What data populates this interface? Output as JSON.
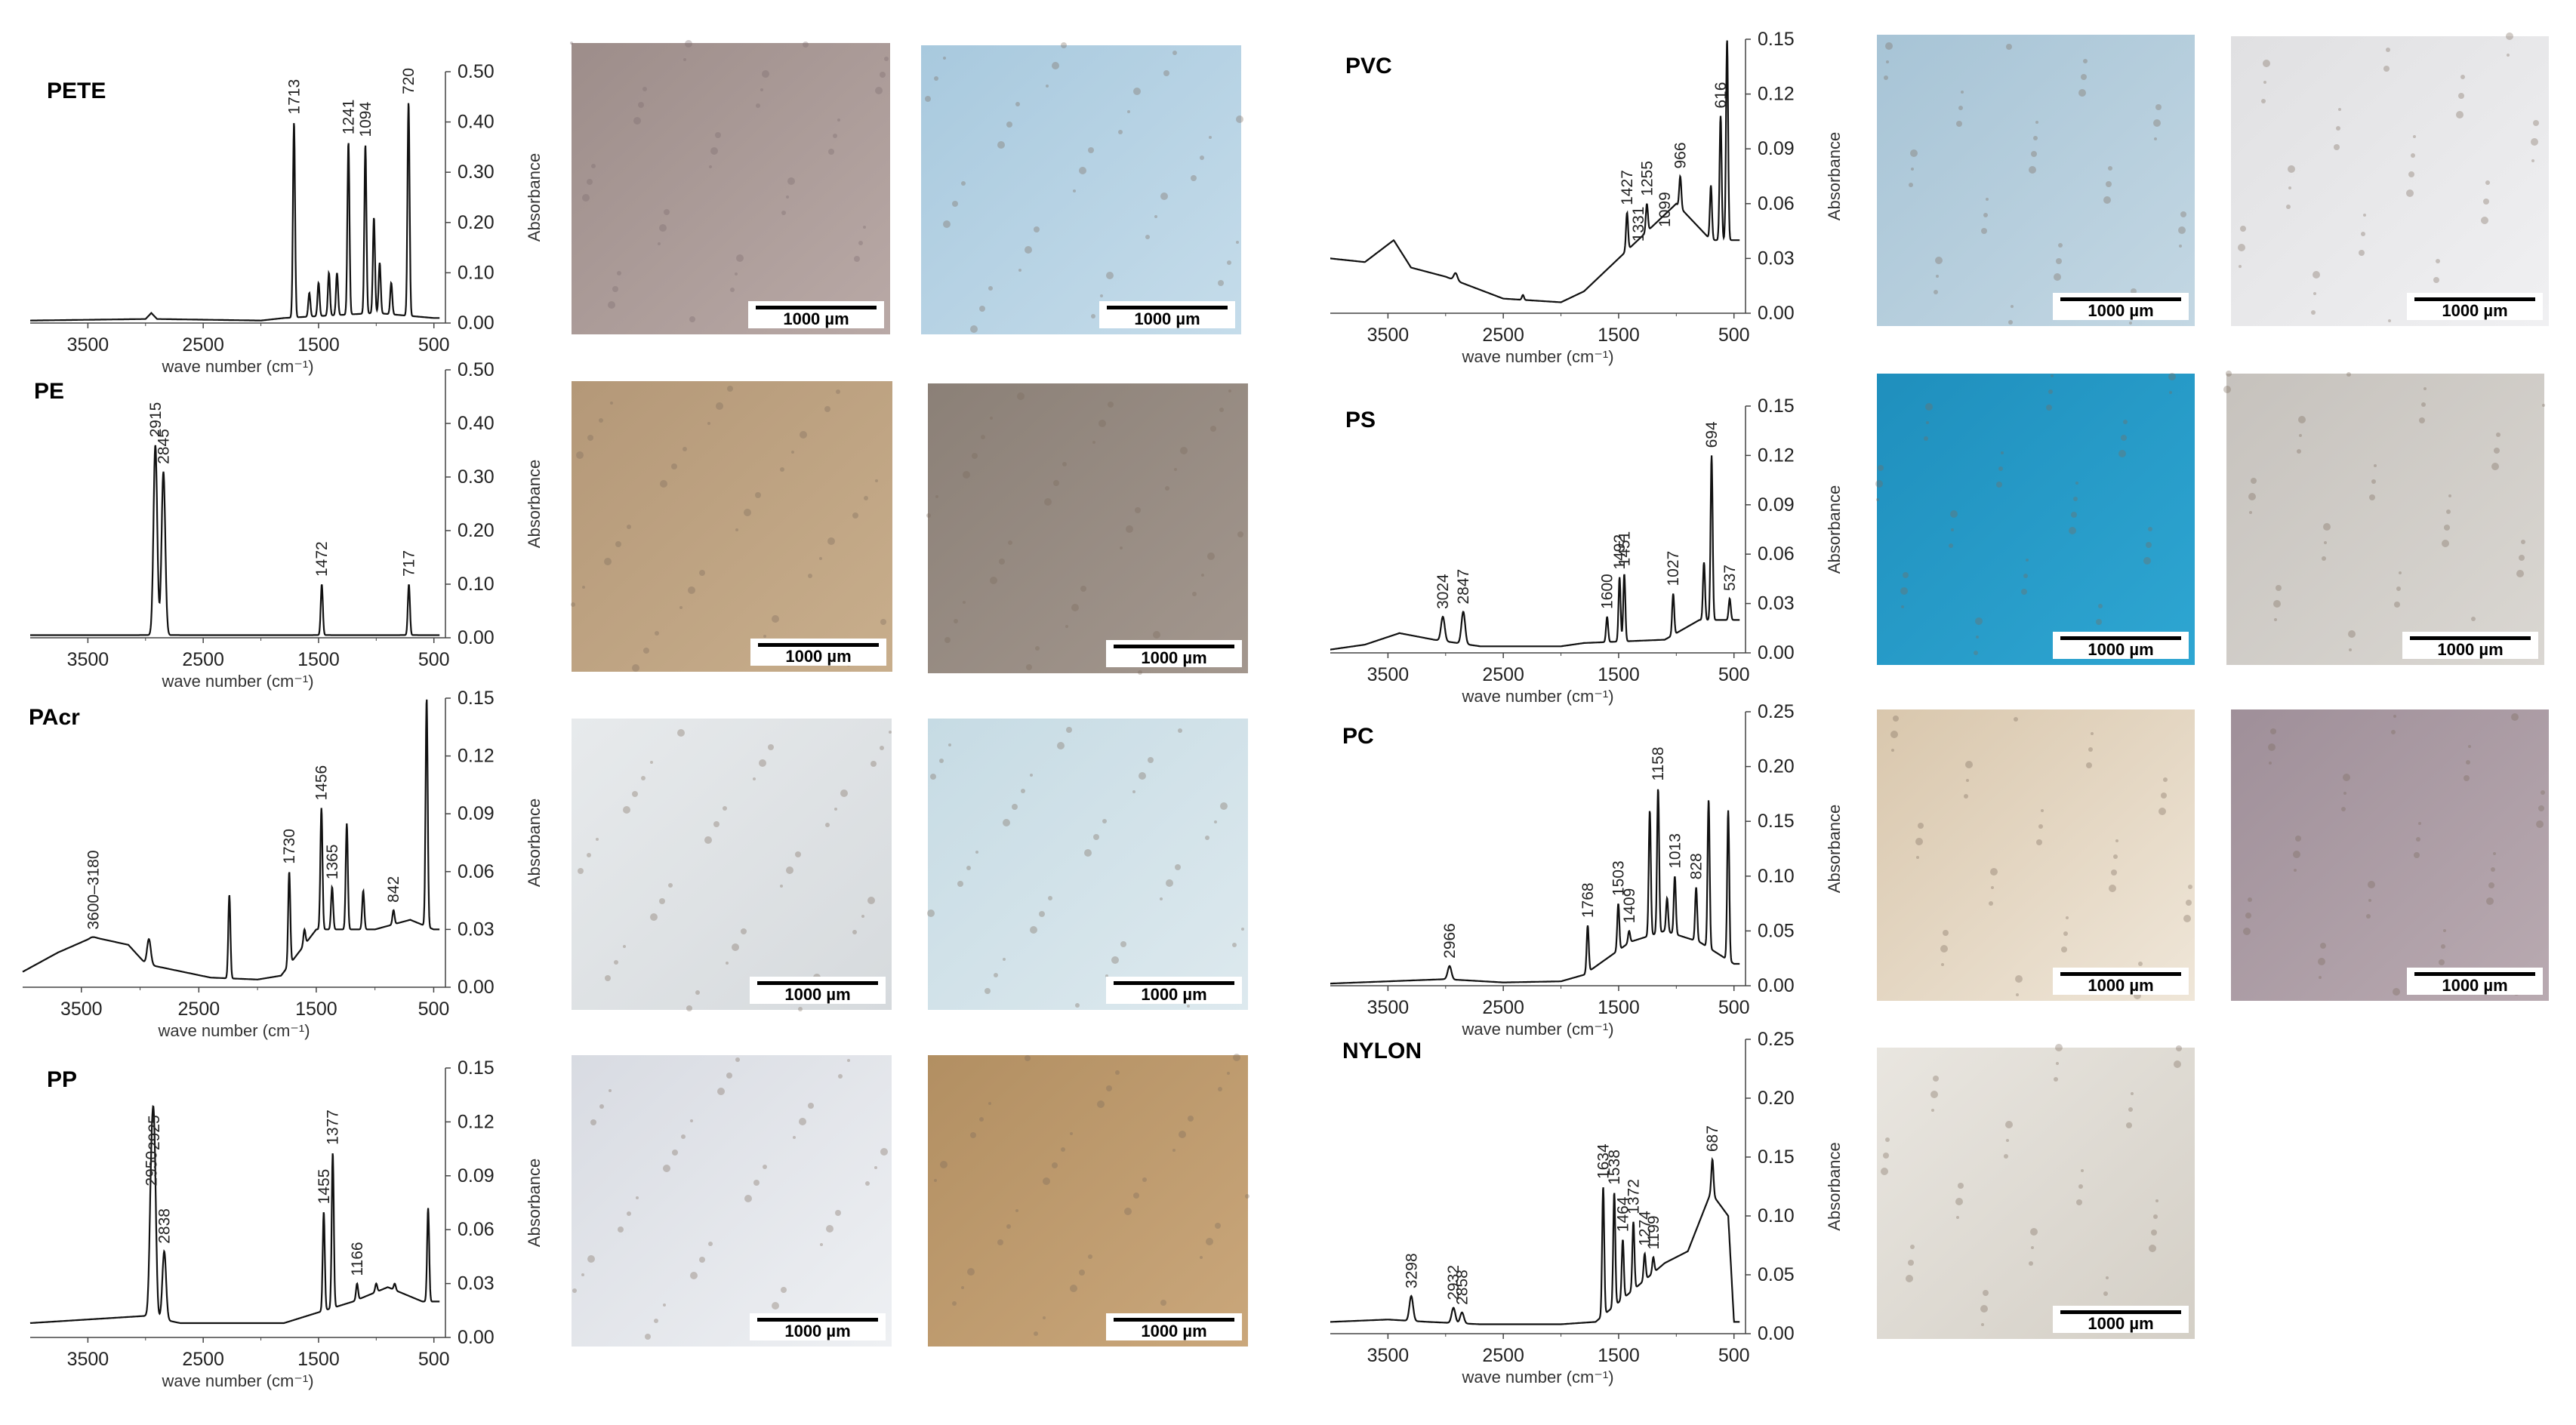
{
  "chart_data": [
    {
      "type": "line",
      "title": "PETE",
      "xlabel": "wave number (cm⁻¹)",
      "ylabel": "Absorbance",
      "xlim": [
        4000,
        400
      ],
      "xticks": [
        3500,
        2500,
        1500,
        500
      ],
      "ylim": [
        0,
        0.5
      ],
      "yticks": [
        "0.00",
        "0.10",
        "0.20",
        "0.30",
        "0.40",
        "0.50"
      ],
      "baseline": [
        [
          4000,
          0.005
        ],
        [
          3000,
          0.008
        ],
        [
          2950,
          0.02
        ],
        [
          2900,
          0.008
        ],
        [
          2000,
          0.005
        ],
        [
          1800,
          0.01
        ],
        [
          1000,
          0.02
        ],
        [
          500,
          0.01
        ]
      ],
      "peaks": [
        {
          "label": "1713",
          "x": 1713,
          "y": 0.4
        },
        {
          "label": "1241",
          "x": 1241,
          "y": 0.36
        },
        {
          "label": "1094",
          "x": 1094,
          "y": 0.355
        },
        {
          "label": "720",
          "x": 720,
          "y": 0.44
        }
      ],
      "minor_peaks": [
        [
          1580,
          0.06
        ],
        [
          1500,
          0.08
        ],
        [
          1410,
          0.1
        ],
        [
          1340,
          0.1
        ],
        [
          1020,
          0.21
        ],
        [
          970,
          0.12
        ],
        [
          870,
          0.08
        ]
      ],
      "images": {
        "scale_labels": [
          "1000 µm",
          "1000 µm"
        ]
      }
    },
    {
      "type": "line",
      "title": "PE",
      "xlabel": "wave number (cm⁻¹)",
      "ylabel": "Absorbance",
      "xlim": [
        4000,
        400
      ],
      "xticks": [
        3500,
        2500,
        1500,
        500
      ],
      "ylim": [
        0,
        0.5
      ],
      "yticks": [
        "0.00",
        "0.10",
        "0.20",
        "0.30",
        "0.40",
        "0.50"
      ],
      "baseline": [
        [
          4000,
          0.005
        ],
        [
          2000,
          0.005
        ],
        [
          500,
          0.005
        ]
      ],
      "peaks": [
        {
          "label": "2915",
          "x": 2915,
          "y": 0.36
        },
        {
          "label": "2845",
          "x": 2845,
          "y": 0.31
        },
        {
          "label": "1472",
          "x": 1472,
          "y": 0.1
        },
        {
          "label": "717",
          "x": 717,
          "y": 0.1
        }
      ],
      "minor_peaks": [],
      "images": {
        "scale_labels": [
          "1000 µm",
          "1000 µm"
        ]
      }
    },
    {
      "type": "line",
      "title": "PAcr",
      "xlabel": "wave number (cm⁻¹)",
      "ylabel": "Absorbance",
      "xlim": [
        4000,
        400
      ],
      "xticks": [
        3500,
        2500,
        1500,
        500
      ],
      "ylim": [
        0,
        0.15
      ],
      "yticks": [
        "0.00",
        "0.03",
        "0.06",
        "0.09",
        "0.12",
        "0.15"
      ],
      "baseline": [
        [
          4000,
          0.008
        ],
        [
          3700,
          0.018
        ],
        [
          3400,
          0.026
        ],
        [
          3100,
          0.022
        ],
        [
          2950,
          0.012
        ],
        [
          2400,
          0.005
        ],
        [
          2000,
          0.004
        ],
        [
          1800,
          0.006
        ],
        [
          1500,
          0.03
        ],
        [
          1000,
          0.03
        ],
        [
          700,
          0.035
        ],
        [
          500,
          0.03
        ]
      ],
      "peaks": [
        {
          "label": "3600–3180",
          "x": 3400,
          "y": 0.026
        },
        {
          "label": "1730",
          "x": 1730,
          "y": 0.06
        },
        {
          "label": "1456",
          "x": 1456,
          "y": 0.093
        },
        {
          "label": "1365",
          "x": 1365,
          "y": 0.052
        },
        {
          "label": "842",
          "x": 842,
          "y": 0.04
        }
      ],
      "minor_peaks": [
        [
          2925,
          0.025
        ],
        [
          2240,
          0.048
        ],
        [
          1600,
          0.03
        ],
        [
          1240,
          0.085
        ],
        [
          1100,
          0.05
        ],
        [
          560,
          0.15
        ]
      ],
      "images": {
        "scale_labels": [
          "1000 µm",
          "1000 µm"
        ]
      }
    },
    {
      "type": "line",
      "title": "PP",
      "xlabel": "wave number (cm⁻¹)",
      "ylabel": "Absorbance",
      "xlim": [
        4000,
        400
      ],
      "xticks": [
        3500,
        2500,
        1500,
        500
      ],
      "ylim": [
        0,
        0.15
      ],
      "yticks": [
        "0.00",
        "0.03",
        "0.06",
        "0.09",
        "0.12",
        "0.15"
      ],
      "baseline": [
        [
          4000,
          0.008
        ],
        [
          3000,
          0.012
        ],
        [
          2700,
          0.008
        ],
        [
          1800,
          0.008
        ],
        [
          1600,
          0.012
        ],
        [
          1200,
          0.02
        ],
        [
          900,
          0.028
        ],
        [
          600,
          0.02
        ],
        [
          500,
          0.02
        ]
      ],
      "peaks": [
        {
          "label": "2950",
          "x": 2950,
          "y": 0.08
        },
        {
          "label": "2925",
          "x": 2925,
          "y": 0.1
        },
        {
          "label": "2838",
          "x": 2838,
          "y": 0.048
        },
        {
          "label": "1455",
          "x": 1455,
          "y": 0.07
        },
        {
          "label": "1377",
          "x": 1377,
          "y": 0.103
        },
        {
          "label": "1166",
          "x": 1166,
          "y": 0.03
        }
      ],
      "minor_peaks": [
        [
          1000,
          0.03
        ],
        [
          840,
          0.03
        ],
        [
          550,
          0.072
        ]
      ],
      "images": {
        "scale_labels": [
          "1000 µm",
          "1000 µm"
        ]
      }
    },
    {
      "type": "line",
      "title": "PVC",
      "xlabel": "wave number (cm⁻¹)",
      "ylabel": "Absorbance",
      "xlim": [
        4000,
        400
      ],
      "xticks": [
        3500,
        2500,
        1500,
        500
      ],
      "ylim": [
        0,
        0.15
      ],
      "yticks": [
        "0.00",
        "0.03",
        "0.06",
        "0.09",
        "0.12",
        "0.15"
      ],
      "baseline": [
        [
          4000,
          0.03
        ],
        [
          3700,
          0.028
        ],
        [
          3450,
          0.04
        ],
        [
          3300,
          0.025
        ],
        [
          3000,
          0.02
        ],
        [
          2500,
          0.008
        ],
        [
          2000,
          0.006
        ],
        [
          1800,
          0.012
        ],
        [
          1500,
          0.03
        ],
        [
          1000,
          0.06
        ],
        [
          700,
          0.04
        ],
        [
          500,
          0.04
        ]
      ],
      "peaks": [
        {
          "label": "1427",
          "x": 1427,
          "y": 0.055
        },
        {
          "label": "1331",
          "x": 1331,
          "y": 0.035
        },
        {
          "label": "1255",
          "x": 1255,
          "y": 0.06
        },
        {
          "label": "1099",
          "x": 1099,
          "y": 0.043
        },
        {
          "label": "966",
          "x": 966,
          "y": 0.075
        },
        {
          "label": "616",
          "x": 616,
          "y": 0.108
        }
      ],
      "minor_peaks": [
        [
          2915,
          0.022
        ],
        [
          2330,
          0.01
        ],
        [
          1730,
          0.015
        ],
        [
          700,
          0.07
        ],
        [
          560,
          0.15
        ]
      ],
      "images": {
        "scale_labels": [
          "1000 µm",
          "1000 µm"
        ]
      }
    },
    {
      "type": "line",
      "title": "PS",
      "xlabel": "wave number (cm⁻¹)",
      "ylabel": "Absorbance",
      "xlim": [
        4000,
        400
      ],
      "xticks": [
        3500,
        2500,
        1500,
        500
      ],
      "ylim": [
        0,
        0.15
      ],
      "yticks": [
        "0.00",
        "0.03",
        "0.06",
        "0.09",
        "0.12",
        "0.15"
      ],
      "baseline": [
        [
          4000,
          0.002
        ],
        [
          3700,
          0.005
        ],
        [
          3400,
          0.012
        ],
        [
          3100,
          0.008
        ],
        [
          2700,
          0.004
        ],
        [
          2000,
          0.004
        ],
        [
          1800,
          0.006
        ],
        [
          1100,
          0.008
        ],
        [
          800,
          0.02
        ],
        [
          500,
          0.02
        ]
      ],
      "peaks": [
        {
          "label": "3024",
          "x": 3024,
          "y": 0.022
        },
        {
          "label": "2847",
          "x": 2847,
          "y": 0.025
        },
        {
          "label": "1600",
          "x": 1600,
          "y": 0.022
        },
        {
          "label": "1492",
          "x": 1492,
          "y": 0.046
        },
        {
          "label": "1451",
          "x": 1451,
          "y": 0.048
        },
        {
          "label": "1027",
          "x": 1027,
          "y": 0.036
        },
        {
          "label": "694",
          "x": 694,
          "y": 0.12
        },
        {
          "label": "537",
          "x": 537,
          "y": 0.033
        }
      ],
      "minor_peaks": [
        [
          760,
          0.055
        ]
      ],
      "images": {
        "scale_labels": [
          "1000 µm",
          "1000 µm"
        ]
      }
    },
    {
      "type": "line",
      "title": "PC",
      "xlabel": "wave number (cm⁻¹)",
      "ylabel": "Absorbance",
      "xlim": [
        4000,
        400
      ],
      "xticks": [
        3500,
        2500,
        1500,
        500
      ],
      "ylim": [
        0,
        0.25
      ],
      "yticks": [
        "0.00",
        "0.05",
        "0.10",
        "0.15",
        "0.20",
        "0.25"
      ],
      "baseline": [
        [
          4000,
          0.002
        ],
        [
          3500,
          0.004
        ],
        [
          3000,
          0.006
        ],
        [
          2500,
          0.003
        ],
        [
          2000,
          0.004
        ],
        [
          1800,
          0.01
        ],
        [
          1400,
          0.04
        ],
        [
          1100,
          0.05
        ],
        [
          800,
          0.04
        ],
        [
          500,
          0.02
        ]
      ],
      "peaks": [
        {
          "label": "2966",
          "x": 2966,
          "y": 0.018
        },
        {
          "label": "1768",
          "x": 1768,
          "y": 0.055
        },
        {
          "label": "1503",
          "x": 1503,
          "y": 0.075
        },
        {
          "label": "1409",
          "x": 1409,
          "y": 0.05
        },
        {
          "label": "1158",
          "x": 1158,
          "y": 0.18
        },
        {
          "label": "1013",
          "x": 1013,
          "y": 0.1
        },
        {
          "label": "828",
          "x": 828,
          "y": 0.09
        }
      ],
      "minor_peaks": [
        [
          1230,
          0.16
        ],
        [
          1080,
          0.08
        ],
        [
          720,
          0.17
        ],
        [
          550,
          0.16
        ]
      ],
      "images": {
        "scale_labels": [
          "1000 µm",
          "1000 µm"
        ]
      }
    },
    {
      "type": "line",
      "title": "NYLON",
      "xlabel": "wave number (cm⁻¹)",
      "ylabel": "Absorbance",
      "xlim": [
        4000,
        400
      ],
      "xticks": [
        3500,
        2500,
        1500,
        500
      ],
      "ylim": [
        0,
        0.25
      ],
      "yticks": [
        "0.00",
        "0.05",
        "0.10",
        "0.15",
        "0.20",
        "0.25"
      ],
      "baseline": [
        [
          4000,
          0.01
        ],
        [
          3500,
          0.012
        ],
        [
          3150,
          0.01
        ],
        [
          2700,
          0.008
        ],
        [
          2000,
          0.008
        ],
        [
          1700,
          0.01
        ],
        [
          1100,
          0.06
        ],
        [
          900,
          0.07
        ],
        [
          700,
          0.12
        ],
        [
          550,
          0.1
        ],
        [
          500,
          0.01
        ]
      ],
      "peaks": [
        {
          "label": "3298",
          "x": 3298,
          "y": 0.032
        },
        {
          "label": "2932",
          "x": 2932,
          "y": 0.022
        },
        {
          "label": "2858",
          "x": 2858,
          "y": 0.018
        },
        {
          "label": "1634",
          "x": 1634,
          "y": 0.125
        },
        {
          "label": "1538",
          "x": 1538,
          "y": 0.12
        },
        {
          "label": "1464",
          "x": 1464,
          "y": 0.08
        },
        {
          "label": "1372",
          "x": 1372,
          "y": 0.095
        },
        {
          "label": "1274",
          "x": 1274,
          "y": 0.068
        },
        {
          "label": "1199",
          "x": 1199,
          "y": 0.065
        },
        {
          "label": "687",
          "x": 687,
          "y": 0.148
        }
      ],
      "minor_peaks": [],
      "images": {
        "scale_labels": [
          "1000 µm"
        ]
      }
    }
  ]
}
